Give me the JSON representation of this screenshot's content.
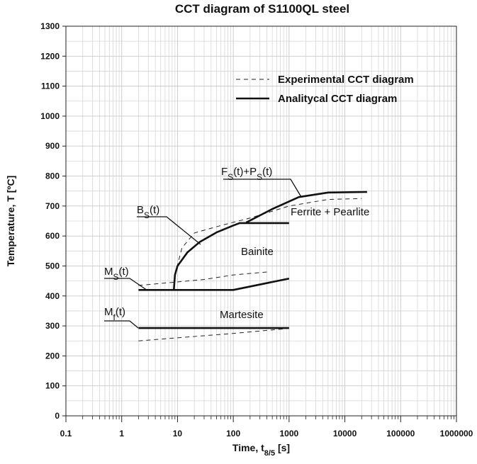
{
  "chart_data": {
    "type": "line",
    "title": "CCT diagram of S1100QL steel",
    "x_label": [
      {
        "text": "Time, t",
        "sub": false
      },
      {
        "text": "8/5",
        "sub": true
      },
      {
        "text": " [s]",
        "sub": false
      }
    ],
    "y_label": "Temperature, T [ºC]",
    "x_scale": "log",
    "xlim": [
      0.1,
      1000000
    ],
    "xticks": [
      0.1,
      1,
      10,
      100,
      1000,
      10000,
      100000,
      1000000
    ],
    "ylim": [
      0,
      1300
    ],
    "yticks": [
      0,
      100,
      200,
      300,
      400,
      500,
      600,
      700,
      800,
      900,
      1000,
      1100,
      1200,
      1300
    ],
    "y_minor_ticks": [
      50,
      150,
      250,
      350,
      450,
      550,
      650,
      750,
      850,
      950,
      1050,
      1150,
      1250
    ],
    "grid": true,
    "legend": "upper right",
    "series": [
      {
        "name": "Experimental CCT diagram",
        "color": "#222",
        "style": "dashed",
        "x": [
          2,
          30,
          100,
          400,
          null,
          2,
          100,
          800,
          null,
          9,
          12,
          20,
          60,
          200,
          1000,
          5000,
          20000
        ],
        "values": [
          435,
          455,
          470,
          480,
          null,
          250,
          275,
          290,
          null,
          470,
          560,
          610,
          635,
          660,
          700,
          722,
          725
        ]
      },
      {
        "name": "Analitycal CCT diagram",
        "color": "#111",
        "style": "solid",
        "x": [
          2,
          100,
          1000,
          null,
          2,
          1000,
          null,
          8.6,
          9,
          10,
          15,
          25,
          50,
          100,
          130,
          1000,
          null,
          170,
          500,
          1500,
          5000,
          25000
        ],
        "values": [
          420,
          420,
          458,
          null,
          293,
          293,
          null,
          420,
          470,
          500,
          545,
          580,
          612,
          635,
          643,
          643,
          null,
          645,
          690,
          730,
          745,
          747
        ]
      }
    ],
    "annotations": [
      {
        "parts": [
          {
            "text": "F",
            "sub": false
          },
          {
            "text": "S",
            "sub": true
          },
          {
            "text": "(t)+P",
            "sub": false
          },
          {
            "text": "S",
            "sub": true
          },
          {
            "text": "(t)",
            "sub": false
          }
        ]
      },
      {
        "parts": [
          {
            "text": "B",
            "sub": false
          },
          {
            "text": "S",
            "sub": true
          },
          {
            "text": "(t)",
            "sub": false
          }
        ]
      },
      {
        "parts": [
          {
            "text": "M",
            "sub": false
          },
          {
            "text": "S",
            "sub": true
          },
          {
            "text": "(t)",
            "sub": false
          }
        ]
      },
      {
        "parts": [
          {
            "text": "M",
            "sub": false
          },
          {
            "text": "f",
            "sub": true
          },
          {
            "text": "(t)",
            "sub": false
          }
        ]
      }
    ],
    "regions": [
      "Ferrite + Pearlite",
      "Bainite",
      "Martesite"
    ]
  }
}
